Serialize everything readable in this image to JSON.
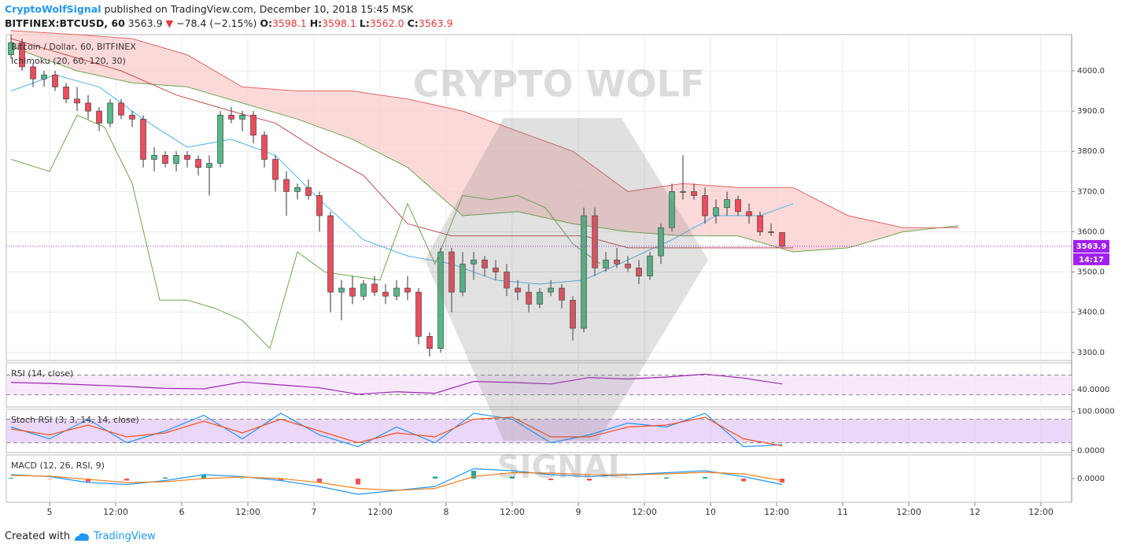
{
  "header": {
    "author": "CryptoWolfSignal",
    "published": "published on TradingView.com, December 10, 2018 15:45 MSK",
    "symbol": "BITFINEX:BTCUSD, 60",
    "price": "3563.9",
    "arrow": "▼",
    "change": "−78.4 (−2.15%)",
    "o_label": "O:",
    "o": "3598.1",
    "h_label": "H:",
    "h": "3598.1",
    "l_label": "L:",
    "l": "3562.0",
    "c_label": "C:",
    "c": "3563.9"
  },
  "watermark": {
    "top": "CRYPTO WOLF",
    "bottom": "SIGNAL"
  },
  "footer": {
    "created": "Created with",
    "brand": "TradingView"
  },
  "chart_data": [
    {
      "type": "candlestick",
      "title": "Bitcoin / Dollar, 60, BITFINEX",
      "indicator": "Ichimoku (20, 60, 120, 30)",
      "x": [
        -7,
        -5,
        -3,
        -1,
        1,
        3,
        5,
        7,
        9,
        11,
        13,
        15,
        17,
        19,
        21,
        23,
        25,
        27,
        29,
        31,
        33,
        35,
        37,
        39,
        41,
        43,
        45,
        47,
        49,
        51,
        53,
        55,
        57,
        59,
        61,
        63,
        65,
        67,
        69,
        71,
        73,
        75,
        77,
        79,
        81,
        83,
        85,
        87,
        89,
        91,
        93,
        95,
        97,
        99,
        101,
        103,
        105,
        107,
        109,
        111,
        113,
        115,
        117,
        119,
        121,
        123,
        125,
        127,
        129,
        131,
        133
      ],
      "open": [
        4040,
        4070,
        4010,
        3980,
        3990,
        3960,
        3930,
        3920,
        3900,
        3870,
        3920,
        3890,
        3880,
        3780,
        3790,
        3770,
        3790,
        3780,
        3760,
        3770,
        3890,
        3880,
        3890,
        3840,
        3780,
        3730,
        3700,
        3710,
        3690,
        3640,
        3450,
        3460,
        3440,
        3470,
        3450,
        3440,
        3460,
        3450,
        3340,
        3310,
        3550,
        3450,
        3520,
        3530,
        3510,
        3500,
        3460,
        3450,
        3420,
        3450,
        3460,
        3430,
        3360,
        3640,
        3510,
        3530,
        3520,
        3510,
        3490,
        3540,
        3610,
        3700,
        3700,
        3690,
        3640,
        3660,
        3680,
        3650,
        3640,
        3600,
        3598.1
      ],
      "high": [
        4090,
        4080,
        4020,
        4000,
        4000,
        3970,
        3960,
        3940,
        3910,
        3930,
        3930,
        3900,
        3890,
        3810,
        3800,
        3800,
        3800,
        3790,
        3790,
        3900,
        3910,
        3900,
        3900,
        3850,
        3790,
        3750,
        3720,
        3730,
        3700,
        3650,
        3480,
        3490,
        3480,
        3490,
        3470,
        3480,
        3490,
        3460,
        3350,
        3560,
        3560,
        3550,
        3550,
        3540,
        3530,
        3520,
        3480,
        3470,
        3460,
        3480,
        3470,
        3440,
        3660,
        3660,
        3550,
        3560,
        3540,
        3530,
        3550,
        3620,
        3720,
        3790,
        3720,
        3710,
        3680,
        3700,
        3690,
        3670,
        3650,
        3620,
        3598.1
      ],
      "low": [
        4030,
        4000,
        3960,
        3960,
        3950,
        3920,
        3900,
        3880,
        3850,
        3860,
        3880,
        3860,
        3760,
        3750,
        3760,
        3750,
        3760,
        3740,
        3690,
        3760,
        3870,
        3850,
        3820,
        3760,
        3700,
        3640,
        3680,
        3680,
        3600,
        3400,
        3380,
        3420,
        3430,
        3440,
        3420,
        3430,
        3430,
        3320,
        3290,
        3300,
        3400,
        3440,
        3480,
        3490,
        3480,
        3440,
        3430,
        3400,
        3410,
        3440,
        3410,
        3330,
        3350,
        3490,
        3500,
        3510,
        3500,
        3470,
        3480,
        3520,
        3600,
        3680,
        3680,
        3620,
        3620,
        3640,
        3640,
        3620,
        3590,
        3590,
        3562
      ],
      "close": [
        4070,
        4010,
        3980,
        3990,
        3960,
        3930,
        3920,
        3900,
        3870,
        3920,
        3890,
        3880,
        3780,
        3790,
        3770,
        3790,
        3780,
        3760,
        3770,
        3890,
        3880,
        3890,
        3840,
        3780,
        3730,
        3700,
        3710,
        3690,
        3640,
        3450,
        3460,
        3440,
        3470,
        3450,
        3440,
        3460,
        3450,
        3340,
        3310,
        3550,
        3450,
        3520,
        3530,
        3510,
        3500,
        3460,
        3450,
        3420,
        3450,
        3460,
        3430,
        3360,
        3640,
        3510,
        3530,
        3520,
        3510,
        3490,
        3540,
        3610,
        3700,
        3700,
        3690,
        3640,
        3660,
        3680,
        3650,
        3640,
        3600,
        3598.1,
        3563.9
      ],
      "up_color": "#53b987",
      "down_color": "#eb4d5c",
      "cloud": {
        "x": [
          -7,
          5,
          15,
          25,
          35,
          45,
          55,
          65,
          75,
          85,
          95,
          105,
          115,
          125,
          135,
          145,
          155,
          165
        ],
        "span_a": [
          4060,
          4000,
          3970,
          3960,
          3920,
          3880,
          3830,
          3760,
          3640,
          3650,
          3620,
          3600,
          3590,
          3590,
          3550,
          3560,
          3600,
          3615
        ],
        "span_b": [
          4100,
          4090,
          4080,
          4040,
          3960,
          3950,
          3950,
          3930,
          3900,
          3850,
          3800,
          3700,
          3720,
          3710,
          3710,
          3640,
          3610,
          3610
        ],
        "fill": "#fbd0d0",
        "a_color": "#6aa84f",
        "b_color": "#e06666"
      },
      "series": [
        {
          "color": "#4fb3e8",
          "x": [
            -7,
            1,
            9,
            17,
            25,
            33,
            41,
            49,
            57,
            65,
            73,
            81,
            89,
            97,
            105,
            113,
            121,
            129,
            135
          ],
          "values": [
            3950,
            3990,
            3960,
            3880,
            3810,
            3830,
            3790,
            3680,
            3580,
            3540,
            3520,
            3480,
            3470,
            3480,
            3530,
            3580,
            3640,
            3640,
            3670
          ]
        },
        {
          "color": "#c0504d",
          "x": [
            -7,
            3,
            13,
            23,
            33,
            41,
            49,
            57,
            65,
            73,
            81,
            89,
            97,
            105,
            113,
            121,
            129,
            135
          ],
          "values": [
            4080,
            4040,
            4000,
            3940,
            3900,
            3870,
            3800,
            3740,
            3620,
            3590,
            3590,
            3590,
            3590,
            3560,
            3560,
            3560,
            3560,
            3560
          ]
        },
        {
          "color": "#6aa84f",
          "x": [
            -7,
            0,
            5,
            10,
            15,
            20,
            25,
            30,
            35,
            40,
            45,
            50,
            55,
            60,
            65,
            70,
            75,
            80,
            85,
            90,
            95,
            100
          ],
          "values": [
            3780,
            3750,
            3890,
            3860,
            3720,
            3430,
            3430,
            3410,
            3380,
            3310,
            3550,
            3500,
            3490,
            3480,
            3670,
            3520,
            3690,
            3680,
            3690,
            3660,
            3570,
            3520
          ]
        }
      ],
      "ylim": [
        3280,
        4090
      ],
      "yticks": [
        {
          "value": 3300,
          "label": "3300.0"
        },
        {
          "value": 3400,
          "label": "3400.0"
        },
        {
          "value": 3500,
          "label": "3500.0"
        },
        {
          "value": 3600,
          "label": "3600.0"
        },
        {
          "value": 3700,
          "label": "3700.0"
        },
        {
          "value": 3800,
          "label": "3800.0"
        },
        {
          "value": 3900,
          "label": "3900.0"
        },
        {
          "value": 4000,
          "label": "4000.0"
        }
      ],
      "xlim": [
        -7.86,
        185.57
      ],
      "xticks": [
        {
          "value": 0,
          "label": "5"
        },
        {
          "value": 12,
          "label": "12:00"
        },
        {
          "value": 24,
          "label": "6"
        },
        {
          "value": 36,
          "label": "12:00"
        },
        {
          "value": 48,
          "label": "7"
        },
        {
          "value": 60,
          "label": "12:00"
        },
        {
          "value": 72,
          "label": "8"
        },
        {
          "value": 84,
          "label": "12:00"
        },
        {
          "value": 96,
          "label": "9"
        },
        {
          "value": 108,
          "label": "12:00"
        },
        {
          "value": 120,
          "label": "10"
        },
        {
          "value": 132,
          "label": "12:00"
        },
        {
          "value": 144,
          "label": "11"
        },
        {
          "value": 156,
          "label": "12:00"
        },
        {
          "value": 168,
          "label": "12"
        },
        {
          "value": 180,
          "label": "12:00"
        }
      ],
      "grid": true,
      "last_price": 3563.9,
      "last_price_label": "3563.9",
      "last_price_color": "#a020f0",
      "countdown": "14:17"
    },
    {
      "type": "line",
      "title": "RSI (14, close)",
      "x": [
        -7,
        0,
        7,
        14,
        21,
        28,
        35,
        42,
        49,
        56,
        63,
        70,
        77,
        84,
        91,
        98,
        105,
        112,
        119,
        126,
        133
      ],
      "values": [
        55,
        53,
        50,
        47,
        43,
        42,
        56,
        50,
        44,
        31,
        36,
        33,
        57,
        55,
        52,
        65,
        62,
        66,
        72,
        64,
        52
      ],
      "color": "#9c27b0",
      "ylim": [
        5,
        95
      ],
      "yticks": [
        {
          "value": 40,
          "label": "40.0000"
        }
      ],
      "band": [
        30,
        70
      ],
      "band_color": "#f3e0fa"
    },
    {
      "type": "line",
      "title": "Stoch RSI (3, 3, 14, 14, close)",
      "x": [
        -7,
        0,
        7,
        14,
        21,
        28,
        35,
        42,
        49,
        56,
        63,
        70,
        77,
        84,
        91,
        98,
        105,
        112,
        119,
        126,
        133
      ],
      "series": [
        {
          "color": "#2196f3",
          "values": [
            60,
            30,
            80,
            20,
            50,
            90,
            30,
            95,
            40,
            10,
            60,
            20,
            95,
            80,
            20,
            40,
            70,
            60,
            95,
            10,
            15
          ]
        },
        {
          "color": "#f4511e",
          "values": [
            55,
            40,
            65,
            35,
            45,
            75,
            45,
            80,
            50,
            20,
            45,
            35,
            80,
            85,
            35,
            35,
            60,
            65,
            85,
            30,
            12
          ]
        }
      ],
      "ylim": [
        -5,
        105
      ],
      "yticks": [
        {
          "value": 100,
          "label": "100.0000"
        },
        {
          "value": 0,
          "label": "0.0000"
        }
      ],
      "band": [
        20,
        80
      ],
      "band_color": "#e3c6f5"
    },
    {
      "type": "combo",
      "title": "MACD (12, 26, RSI, 9)",
      "x": [
        -7,
        0,
        7,
        14,
        21,
        28,
        35,
        42,
        49,
        56,
        63,
        70,
        77,
        84,
        91,
        98,
        105,
        112,
        119,
        126,
        133
      ],
      "series": [
        {
          "color": "#2196f3",
          "values": [
            10,
            5,
            -10,
            -15,
            -5,
            10,
            5,
            -5,
            -20,
            -40,
            -30,
            -20,
            25,
            20,
            10,
            5,
            10,
            15,
            20,
            5,
            -15
          ]
        },
        {
          "color": "#f4811e",
          "values": [
            8,
            6,
            -2,
            -10,
            -8,
            0,
            4,
            0,
            -10,
            -25,
            -30,
            -25,
            5,
            15,
            14,
            10,
            9,
            12,
            16,
            12,
            -5
          ]
        }
      ],
      "histogram": [
        2,
        -1,
        -8,
        -5,
        3,
        10,
        1,
        -5,
        -10,
        -15,
        0,
        5,
        20,
        5,
        -4,
        -5,
        1,
        3,
        4,
        -7,
        -10
      ],
      "pos_color": "#26a69a",
      "neg_color": "#ef5350",
      "ylim": [
        -60,
        60
      ],
      "yticks": [
        {
          "value": 0,
          "label": "0.0000"
        }
      ]
    }
  ]
}
